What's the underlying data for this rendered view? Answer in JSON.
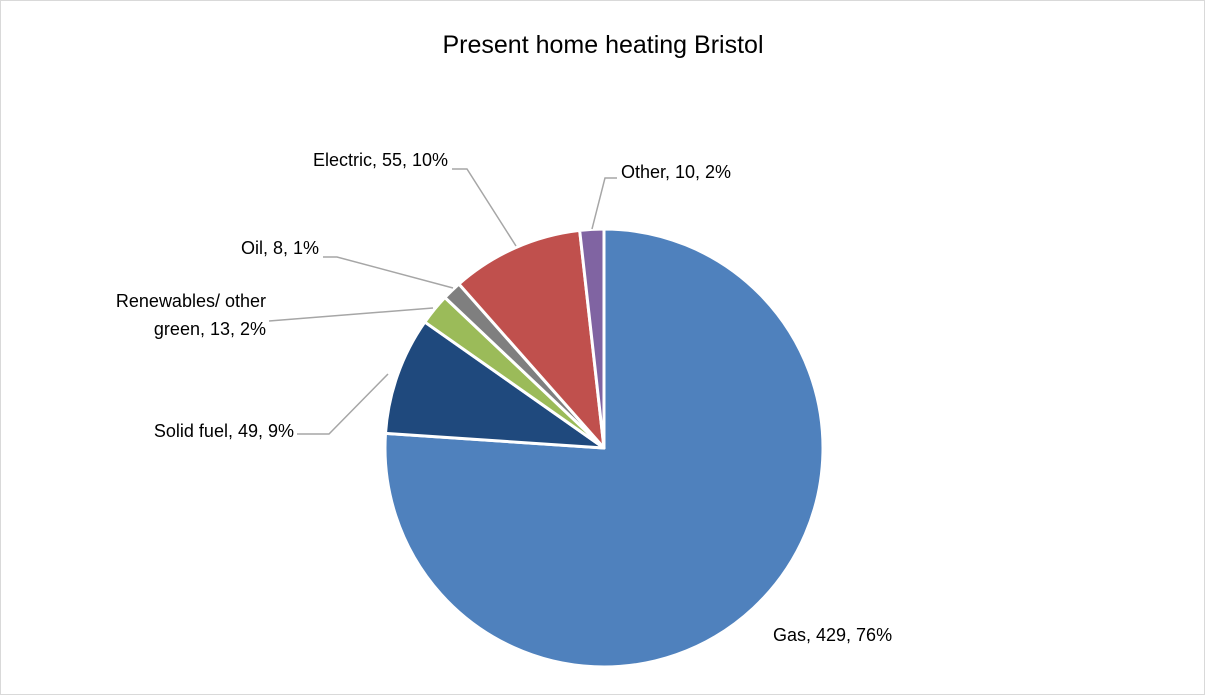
{
  "chart_data": {
    "type": "pie",
    "title": "Present home heating Bristol",
    "start_angle_deg": 0,
    "direction": "clockwise",
    "label_format": "category, value, percent",
    "slices": [
      {
        "label": "Gas",
        "value": 429,
        "percent": "76%",
        "color": "#4f81bd",
        "label_text": [
          "Gas, 429, 76%"
        ]
      },
      {
        "label": "Solid fuel",
        "value": 49,
        "percent": "9%",
        "color": "#1f497d",
        "label_text": [
          "Solid fuel, 49, 9%"
        ]
      },
      {
        "label": "Renewables/ other green",
        "value": 13,
        "percent": "2%",
        "color": "#9bbb59",
        "label_text": [
          "Renewables/ other",
          "green, 13, 2%"
        ]
      },
      {
        "label": "Oil",
        "value": 8,
        "percent": "1%",
        "color": "#7f7f7f",
        "label_text": [
          "Oil, 8, 1%"
        ]
      },
      {
        "label": "Electric",
        "value": 55,
        "percent": "10%",
        "color": "#c0504d",
        "label_text": [
          "Electric, 55, 10%"
        ]
      },
      {
        "label": "Other",
        "value": 10,
        "percent": "2%",
        "color": "#8064a2",
        "label_text": [
          "Other, 10, 2%"
        ]
      }
    ],
    "legend": "none"
  }
}
